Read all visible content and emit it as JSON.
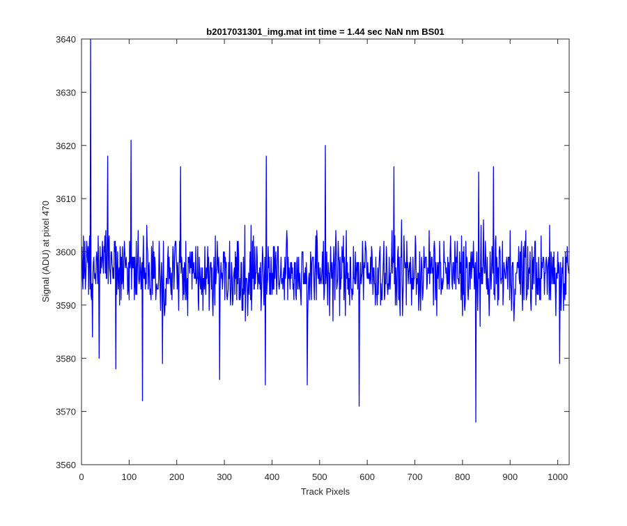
{
  "chart_data": {
    "type": "line",
    "title": "b2017031301_img.mat int time = 1.44 sec  NaN nm BS01",
    "xlabel": "Track Pixels",
    "ylabel": "Signal (ADU) at pixel 470",
    "xlim": [
      0,
      1024
    ],
    "ylim": [
      3560,
      3640
    ],
    "xticks": [
      0,
      100,
      200,
      300,
      400,
      500,
      600,
      700,
      800,
      900,
      1000
    ],
    "yticks": [
      3560,
      3570,
      3580,
      3590,
      3600,
      3610,
      3620,
      3630,
      3640
    ],
    "grid": false,
    "legend": "none",
    "line_color": "#0000ff",
    "series": [
      {
        "x_start": 1,
        "x_step": 1,
        "baseline": 3596,
        "noise_amplitude": 5,
        "count": 1024,
        "notable_points": [
          {
            "x": 19,
            "y": 3640
          },
          {
            "x": 23,
            "y": 3584
          },
          {
            "x": 37,
            "y": 3580
          },
          {
            "x": 55,
            "y": 3618
          },
          {
            "x": 72,
            "y": 3578
          },
          {
            "x": 104,
            "y": 3621
          },
          {
            "x": 128,
            "y": 3572
          },
          {
            "x": 170,
            "y": 3579
          },
          {
            "x": 208,
            "y": 3616
          },
          {
            "x": 290,
            "y": 3576
          },
          {
            "x": 386,
            "y": 3575
          },
          {
            "x": 388,
            "y": 3618
          },
          {
            "x": 474,
            "y": 3575
          },
          {
            "x": 512,
            "y": 3620
          },
          {
            "x": 583,
            "y": 3571
          },
          {
            "x": 656,
            "y": 3616
          },
          {
            "x": 828,
            "y": 3568
          },
          {
            "x": 834,
            "y": 3615
          },
          {
            "x": 865,
            "y": 3616
          },
          {
            "x": 1004,
            "y": 3579
          }
        ]
      }
    ]
  }
}
